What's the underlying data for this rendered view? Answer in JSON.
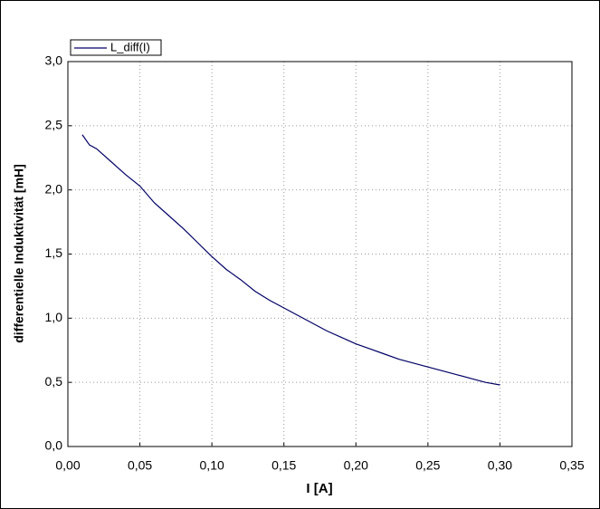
{
  "chart_data": {
    "type": "line",
    "xlabel": "I [A]",
    "ylabel": "differentielle Induktivität [mH]",
    "x": [
      0.01,
      0.015,
      0.02,
      0.03,
      0.04,
      0.05,
      0.06,
      0.07,
      0.08,
      0.09,
      0.1,
      0.11,
      0.12,
      0.13,
      0.14,
      0.15,
      0.16,
      0.17,
      0.18,
      0.19,
      0.2,
      0.21,
      0.22,
      0.23,
      0.24,
      0.25,
      0.26,
      0.27,
      0.28,
      0.29,
      0.3
    ],
    "series": [
      {
        "name": "L_diff(I)",
        "color": "#000066",
        "values": [
          2.43,
          2.35,
          2.32,
          2.22,
          2.12,
          2.03,
          1.9,
          1.8,
          1.7,
          1.59,
          1.48,
          1.38,
          1.3,
          1.21,
          1.14,
          1.08,
          1.02,
          0.96,
          0.9,
          0.85,
          0.8,
          0.76,
          0.72,
          0.68,
          0.65,
          0.62,
          0.59,
          0.56,
          0.53,
          0.5,
          0.48
        ]
      }
    ],
    "xlim": [
      0,
      0.35
    ],
    "xticks": [
      {
        "value": 0,
        "label": "0,00"
      },
      {
        "value": 0.05,
        "label": "0,05"
      },
      {
        "value": 0.1,
        "label": "0,10"
      },
      {
        "value": 0.15,
        "label": "0,15"
      },
      {
        "value": 0.2,
        "label": "0,20"
      },
      {
        "value": 0.25,
        "label": "0,25"
      },
      {
        "value": 0.3,
        "label": "0,30"
      },
      {
        "value": 0.35,
        "label": "0,35"
      }
    ],
    "ylim": [
      0,
      3
    ],
    "yticks": [
      {
        "value": 0,
        "label": "0,0"
      },
      {
        "value": 0.5,
        "label": "0,5"
      },
      {
        "value": 1,
        "label": "1,0"
      },
      {
        "value": 1.5,
        "label": "1,5"
      },
      {
        "value": 2,
        "label": "2,0"
      },
      {
        "value": 2.5,
        "label": "2,5"
      },
      {
        "value": 3,
        "label": "3,0"
      }
    ],
    "grid": true,
    "legend": "top-left"
  }
}
